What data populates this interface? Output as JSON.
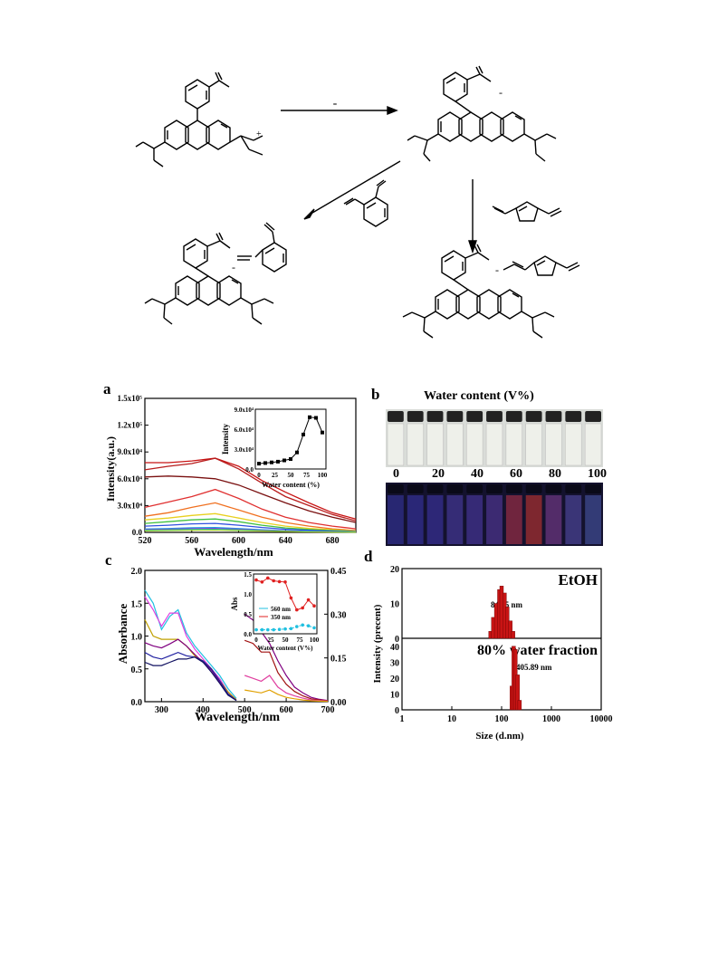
{
  "scheme": {
    "arrow_label_top": "-",
    "plus_sign": "+",
    "minus_sign": "-"
  },
  "panel_a": {
    "letter": "a",
    "ylabel": "Intensity(a.u.)",
    "xlabel": "Wavelength/nm",
    "yticks": [
      "0.0",
      "3.0x10⁴",
      "6.0x10⁴",
      "9.0x10⁴",
      "1.2x10⁵",
      "1.5x10⁵"
    ],
    "xticks": [
      "520",
      "560",
      "600",
      "640",
      "680"
    ],
    "inset": {
      "ylabel": "Intensity",
      "xlabel": "Water content (%)",
      "yticks": [
        "0.0",
        "3.0x10⁴",
        "6.0x10⁴",
        "9.0x10⁴"
      ],
      "xticks": [
        "0",
        "25",
        "50",
        "75",
        "100"
      ]
    }
  },
  "panel_b": {
    "letter": "b",
    "title": "Water content (V%)",
    "labels": [
      "0",
      "20",
      "40",
      "60",
      "80",
      "100"
    ]
  },
  "panel_c": {
    "letter": "c",
    "ylabel": "Absorbance",
    "xlabel": "Wavelength/nm",
    "yticks_left": [
      "0.0",
      "0.5",
      "1.0",
      "1.5",
      "2.0"
    ],
    "yticks_right": [
      "0.00",
      "0.15",
      "0.30",
      "0.45"
    ],
    "xticks": [
      "300",
      "400",
      "500",
      "600",
      "700"
    ],
    "inset": {
      "ylabel": "Abs",
      "xlabel": "Water content (V%)",
      "yticks": [
        "0.0",
        "0.5",
        "1.0",
        "1.5"
      ],
      "xticks": [
        "0",
        "25",
        "50",
        "75",
        "100"
      ],
      "legend": [
        "560 nm",
        "350 nm"
      ]
    }
  },
  "panel_d": {
    "letter": "d",
    "ylabel": "Intensity (precent)",
    "xlabel": "Size (d.nm)",
    "top_label": "EtOH",
    "top_value": "84.55 nm",
    "bottom_label": "80% water fraction",
    "bottom_value": "405.89 nm",
    "yticks_top": [
      "0",
      "10",
      "20"
    ],
    "yticks_bottom": [
      "0",
      "10",
      "20",
      "30",
      "40"
    ],
    "xticks": [
      "1",
      "10",
      "100",
      "1000",
      "10000"
    ]
  },
  "chart_data": [
    {
      "type": "line",
      "panel": "a",
      "xlabel": "Wavelength/nm",
      "ylabel": "Intensity(a.u.)",
      "xlim": [
        520,
        700
      ],
      "ylim": [
        0,
        150000
      ],
      "x": [
        520,
        540,
        560,
        580,
        600,
        620,
        640,
        660,
        680,
        700
      ],
      "series": [
        {
          "values": [
            78000,
            78000,
            80000,
            83000,
            74000,
            58000,
            45000,
            33000,
            22000,
            15000
          ]
        },
        {
          "values": [
            70000,
            74000,
            77000,
            83000,
            71000,
            55000,
            40000,
            30000,
            20000,
            13000
          ]
        },
        {
          "values": [
            62000,
            63000,
            62000,
            60000,
            53000,
            43000,
            33000,
            24000,
            17000,
            11000
          ]
        },
        {
          "values": [
            28000,
            34000,
            40000,
            48000,
            38000,
            26000,
            17000,
            11000,
            7000,
            4000
          ]
        },
        {
          "values": [
            18000,
            22000,
            28000,
            33000,
            25000,
            17000,
            11000,
            7000,
            4000,
            2000
          ]
        },
        {
          "values": [
            14000,
            16000,
            19000,
            21000,
            16000,
            11000,
            7000,
            4500,
            2800,
            1500
          ]
        },
        {
          "values": [
            10000,
            12000,
            14000,
            15000,
            12000,
            8000,
            5000,
            3200,
            2000,
            1000
          ]
        },
        {
          "values": [
            7000,
            8000,
            9500,
            10000,
            8000,
            5500,
            3500,
            2200,
            1300,
            700
          ]
        }
      ],
      "inset": {
        "xlabel": "Water content (%)",
        "ylabel": "Intensity",
        "xlim": [
          0,
          100
        ],
        "ylim": [
          0,
          90000
        ],
        "x": [
          0,
          10,
          20,
          30,
          40,
          50,
          60,
          70,
          80,
          90,
          100
        ],
        "values": [
          8000,
          9000,
          10000,
          11000,
          13000,
          15000,
          25000,
          52000,
          78000,
          77000,
          55000
        ]
      }
    },
    {
      "type": "line",
      "panel": "c",
      "xlabel": "Wavelength/nm",
      "ylabel": "Absorbance",
      "xlim": [
        260,
        700
      ],
      "ylim": [
        0,
        2.0
      ],
      "x": [
        260,
        280,
        300,
        320,
        340,
        360,
        380,
        400,
        420,
        440,
        460,
        480
      ],
      "series": [
        {
          "values": [
            1.7,
            1.5,
            1.1,
            1.3,
            1.4,
            1.05,
            0.85,
            0.7,
            0.55,
            0.4,
            0.2,
            0.05
          ]
        },
        {
          "values": [
            1.6,
            1.4,
            1.15,
            1.35,
            1.35,
            1.0,
            0.8,
            0.65,
            0.5,
            0.35,
            0.15,
            0.03
          ]
        },
        {
          "values": [
            1.25,
            1.0,
            0.95,
            0.95,
            0.95,
            0.85,
            0.7,
            0.62,
            0.5,
            0.32,
            0.15,
            0.03
          ]
        },
        {
          "values": [
            0.9,
            0.85,
            0.82,
            0.88,
            0.95,
            0.85,
            0.72,
            0.6,
            0.48,
            0.3,
            0.12,
            0.02
          ]
        },
        {
          "values": [
            0.75,
            0.68,
            0.65,
            0.7,
            0.75,
            0.7,
            0.68,
            0.62,
            0.5,
            0.32,
            0.12,
            0.02
          ]
        },
        {
          "values": [
            0.6,
            0.55,
            0.55,
            0.6,
            0.65,
            0.65,
            0.68,
            0.6,
            0.45,
            0.28,
            0.1,
            0.02
          ]
        }
      ],
      "right_axis": {
        "ylim": [
          0,
          0.45
        ],
        "x": [
          500,
          520,
          540,
          560,
          580,
          600,
          620,
          640,
          660,
          680,
          700
        ],
        "series": [
          {
            "values": [
              0.3,
              0.28,
              0.24,
              0.2,
              0.14,
              0.09,
              0.05,
              0.03,
              0.015,
              0.008,
              0.004
            ]
          },
          {
            "values": [
              0.21,
              0.2,
              0.17,
              0.17,
              0.1,
              0.06,
              0.035,
              0.02,
              0.01,
              0.006,
              0.003
            ]
          },
          {
            "values": [
              0.09,
              0.08,
              0.07,
              0.09,
              0.05,
              0.03,
              0.02,
              0.012,
              0.006,
              0.004,
              0.002
            ]
          },
          {
            "values": [
              0.04,
              0.035,
              0.03,
              0.04,
              0.025,
              0.015,
              0.01,
              0.006,
              0.003,
              0.002,
              0.001
            ]
          }
        ]
      },
      "inset": {
        "xlabel": "Water content (V%)",
        "ylabel": "Abs",
        "xlim": [
          0,
          100
        ],
        "ylim": [
          0,
          1.5
        ],
        "x": [
          0,
          10,
          20,
          30,
          40,
          50,
          60,
          70,
          80,
          90,
          100
        ],
        "series": [
          {
            "name": "350 nm",
            "values": [
              1.35,
              1.3,
              1.4,
              1.33,
              1.31,
              1.3,
              0.9,
              0.6,
              0.65,
              0.85,
              0.7
            ]
          },
          {
            "name": "560 nm",
            "values": [
              0.1,
              0.1,
              0.1,
              0.1,
              0.11,
              0.12,
              0.13,
              0.18,
              0.22,
              0.2,
              0.15
            ]
          }
        ]
      }
    },
    {
      "type": "bar",
      "panel": "d",
      "xlabel": "Size (d.nm)",
      "ylabel": "Intensity (precent)",
      "xscale": "log",
      "xlim": [
        1,
        10000
      ],
      "series": [
        {
          "name": "EtOH",
          "ylim": [
            0,
            20
          ],
          "x": [
            60,
            68,
            78,
            90,
            100,
            115,
            130,
            150,
            170
          ],
          "values": [
            2,
            6,
            10,
            14,
            15,
            13,
            9,
            5,
            2
          ]
        },
        {
          "name": "80% water fraction",
          "ylim": [
            0,
            40
          ],
          "x": [
            160,
            175,
            190,
            210,
            230
          ],
          "values": [
            15,
            40,
            38,
            22,
            6
          ]
        }
      ]
    }
  ]
}
